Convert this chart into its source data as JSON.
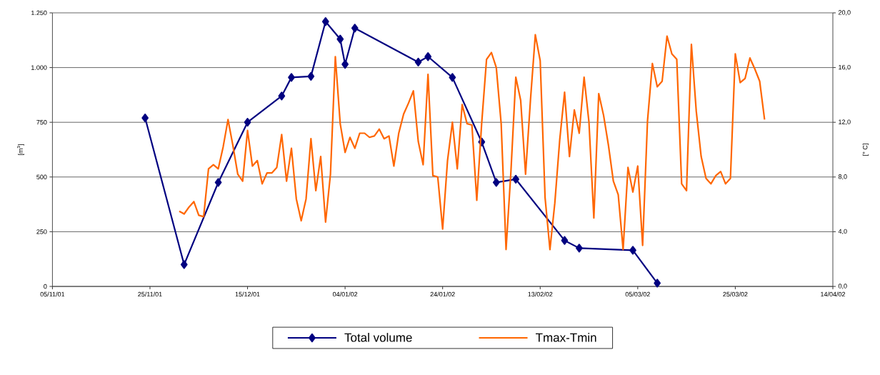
{
  "chart_data": {
    "type": "line",
    "ylabel": "[m$^{3}$]",
    "y2label": "[° C]",
    "xlim": [
      "2001-11-05",
      "2002-04-14"
    ],
    "xticks": [
      {
        "value": "2001-11-05",
        "label": "05/11/01"
      },
      {
        "value": "2001-11-25",
        "label": "25/11/01"
      },
      {
        "value": "2001-12-15",
        "label": "15/12/01"
      },
      {
        "value": "2002-01-04",
        "label": "04/01/02"
      },
      {
        "value": "2002-01-24",
        "label": "24/01/02"
      },
      {
        "value": "2002-02-13",
        "label": "13/02/02"
      },
      {
        "value": "2002-03-05",
        "label": "05/03/02"
      },
      {
        "value": "2002-03-25",
        "label": "25/03/02"
      },
      {
        "value": "2002-04-14",
        "label": "14/04/02"
      }
    ],
    "ylim": [
      0,
      1250
    ],
    "yticks": [
      0,
      250,
      500,
      750,
      {
        "value": 1000,
        "label": "1.000"
      },
      {
        "value": 1250,
        "label": "1.250"
      }
    ],
    "y2lim": [
      0,
      20
    ],
    "y2ticks": [
      {
        "value": 0,
        "label": "0,0"
      },
      {
        "value": 4,
        "label": "4,0"
      },
      {
        "value": 8,
        "label": "8,0"
      },
      {
        "value": 12,
        "label": "12,0"
      },
      {
        "value": 16,
        "label": "16,0"
      },
      {
        "value": 20,
        "label": "20,0"
      }
    ],
    "grid": "y",
    "legend": "bottom",
    "series": [
      {
        "name": "Total volume",
        "color": "#000080",
        "marker": "diamond",
        "line_style": "solid",
        "x": [
          "2001-11-24",
          "2001-12-02",
          "2001-12-09",
          "2001-12-15",
          "2001-12-22",
          "2001-12-24",
          "2001-12-28",
          "2001-12-31",
          "2002-01-03",
          "2002-01-04",
          "2002-01-06",
          "2002-01-19",
          "2002-01-21",
          "2002-01-26",
          "2002-02-01",
          "2002-02-04",
          "2002-02-08",
          "2002-02-18",
          "2002-02-21",
          "2002-03-04",
          "2002-03-09"
        ],
        "values": [
          770,
          100,
          475,
          750,
          870,
          955,
          960,
          1210,
          1130,
          1015,
          1180,
          1025,
          1050,
          955,
          660,
          475,
          490,
          210,
          175,
          165,
          15
        ]
      },
      {
        "name": "Tmax-Tmin",
        "color": "#ff6600",
        "marker": "none",
        "line_style": "solid",
        "axis": "y2",
        "x": [
          "2001-12-01",
          "2001-12-02",
          "2001-12-03",
          "2001-12-04",
          "2001-12-05",
          "2001-12-06",
          "2001-12-07",
          "2001-12-08",
          "2001-12-09",
          "2001-12-10",
          "2001-12-11",
          "2001-12-12",
          "2001-12-13",
          "2001-12-14",
          "2001-12-15",
          "2001-12-16",
          "2001-12-17",
          "2001-12-18",
          "2001-12-19",
          "2001-12-20",
          "2001-12-21",
          "2001-12-22",
          "2001-12-23",
          "2001-12-24",
          "2001-12-25",
          "2001-12-26",
          "2001-12-27",
          "2001-12-28",
          "2001-12-29",
          "2001-12-30",
          "2001-12-31",
          "2002-01-01",
          "2002-01-02",
          "2002-01-03",
          "2002-01-04",
          "2002-01-05",
          "2002-01-06",
          "2002-01-07",
          "2002-01-08",
          "2002-01-09",
          "2002-01-10",
          "2002-01-11",
          "2002-01-12",
          "2002-01-13",
          "2002-01-14",
          "2002-01-15",
          "2002-01-16",
          "2002-01-17",
          "2002-01-18",
          "2002-01-19",
          "2002-01-20",
          "2002-01-21",
          "2002-01-22",
          "2002-01-23",
          "2002-01-24",
          "2002-01-25",
          "2002-01-26",
          "2002-01-27",
          "2002-01-28",
          "2002-01-29",
          "2002-01-30",
          "2002-01-31",
          "2002-02-01",
          "2002-02-02",
          "2002-02-03",
          "2002-02-04",
          "2002-02-05",
          "2002-02-06",
          "2002-02-07",
          "2002-02-08",
          "2002-02-09",
          "2002-02-10",
          "2002-02-11",
          "2002-02-12",
          "2002-02-13",
          "2002-02-14",
          "2002-02-15",
          "2002-02-16",
          "2002-02-17",
          "2002-02-18",
          "2002-02-19",
          "2002-02-20",
          "2002-02-21",
          "2002-02-22",
          "2002-02-23",
          "2002-02-24",
          "2002-02-25",
          "2002-02-26",
          "2002-02-27",
          "2002-02-28",
          "2002-03-01",
          "2002-03-02",
          "2002-03-03",
          "2002-03-04",
          "2002-03-05",
          "2002-03-06",
          "2002-03-07",
          "2002-03-08",
          "2002-03-09",
          "2002-03-10",
          "2002-03-11",
          "2002-03-12",
          "2002-03-13",
          "2002-03-14",
          "2002-03-15",
          "2002-03-16",
          "2002-03-17",
          "2002-03-18",
          "2002-03-19",
          "2002-03-20",
          "2002-03-21",
          "2002-03-22",
          "2002-03-23",
          "2002-03-24",
          "2002-03-25",
          "2002-03-26",
          "2002-03-27",
          "2002-03-28",
          "2002-03-29",
          "2002-03-30",
          "2002-03-31"
        ],
        "values": [
          5.5,
          5.3,
          5.8,
          6.2,
          5.2,
          5.1,
          8.6,
          8.9,
          8.6,
          10.2,
          12.2,
          10.3,
          8.2,
          7.7,
          11.4,
          8.8,
          9.2,
          7.5,
          8.3,
          8.3,
          8.7,
          11.1,
          7.7,
          10.1,
          6.4,
          4.8,
          6.4,
          10.8,
          7.0,
          9.5,
          4.7,
          8.2,
          16.8,
          11.9,
          9.8,
          10.9,
          10.1,
          11.2,
          11.2,
          10.9,
          11.0,
          11.5,
          10.8,
          11.0,
          8.8,
          11.2,
          12.6,
          13.4,
          14.3,
          10.6,
          8.9,
          15.5,
          8.1,
          8.0,
          4.2,
          9.2,
          12.0,
          8.6,
          13.3,
          11.9,
          11.8,
          6.3,
          11.9,
          16.6,
          17.1,
          16.0,
          11.9,
          2.7,
          8.4,
          15.3,
          13.6,
          8.2,
          13.6,
          18.4,
          16.5,
          6.5,
          2.7,
          6.1,
          10.7,
          14.2,
          9.5,
          12.9,
          11.2,
          15.3,
          12.0,
          5.0,
          14.1,
          12.5,
          10.3,
          7.7,
          6.7,
          2.7,
          8.7,
          6.9,
          8.8,
          3.0,
          12.1,
          16.3,
          14.6,
          15.0,
          18.3,
          17.0,
          16.6,
          7.5,
          7.0,
          17.7,
          12.8,
          9.5,
          7.9,
          7.5,
          8.1,
          8.4,
          7.5,
          7.9,
          17.0,
          14.9,
          15.2,
          16.7,
          15.9,
          15.0,
          12.2
        ]
      }
    ]
  }
}
